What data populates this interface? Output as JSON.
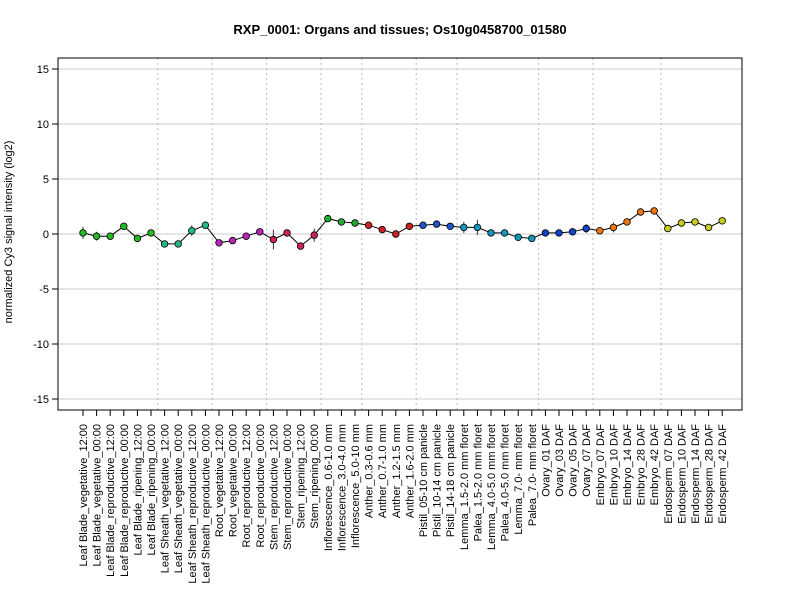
{
  "chart_data": {
    "type": "line",
    "title": "RXP_0001: Organs and tissues; Os10g0458700_01580",
    "xlabel": "",
    "ylabel": "normalized Cy3 signal intensity (log2)",
    "ylim": [
      -16,
      16
    ],
    "yticks": [
      -15,
      -10,
      -5,
      0,
      5,
      10,
      15
    ],
    "grid": true,
    "legend": "none",
    "categories": [
      "Leaf Blade_vegetative_12:00",
      "Leaf Blade_vegetative_00:00",
      "Leaf Blade_reproductive_12:00",
      "Leaf Blade_reproductive_00:00",
      "Leaf Blade_ripening_12:00",
      "Leaf Blade_ripening_00:00",
      "Leaf Sheath_vegetative_12:00",
      "Leaf Sheath_vegetative_00:00",
      "Leaf Sheath_reproductive_12:00",
      "Leaf Sheath_reproductive_00:00",
      "Root_vegetative_12:00",
      "Root_vegetative_00:00",
      "Root_reproductive_12:00",
      "Root_reproductive_00:00",
      "Stem_reproductive_12:00",
      "Stem_reproductive_00:00",
      "Stem_ripening_12:00",
      "Stem_ripening_00:00",
      "Inflorescence_0.6-1.0 mm",
      "Inflorescence_3.0-4.0 mm",
      "Inflorescence_5.0-10 mm",
      "Anther_0.3-0.6 mm",
      "Anther_0.7-1.0 mm",
      "Anther_1.2-1.5 mm",
      "Anther_1.6-2.0 mm",
      "Pistil_05-10 cm panicle",
      "Pistil_10-14 cm panicle",
      "Pistil_14-18 cm panicle",
      "Lemma_1.5-2.0 mm floret",
      "Palea_1.5-2.0 mm floret",
      "Lemma_4.0-5.0 mm floret",
      "Palea_4.0-5.0 mm floret",
      "Lemma_7.0- mm floret",
      "Palea_7.0- mm floret",
      "Ovary_01 DAF",
      "Ovary_03 DAF",
      "Ovary_05 DAF",
      "Ovary_07 DAF",
      "Embryo_07 DAF",
      "Embryo_10 DAF",
      "Embryo_14 DAF",
      "Embryo_28 DAF",
      "Embryo_42 DAF",
      "Endosperm_07 DAF",
      "Endosperm_10 DAF",
      "Endosperm_14 DAF",
      "Endosperm_28 DAF",
      "Endosperm_42 DAF"
    ],
    "values": [
      0.1,
      -0.2,
      -0.2,
      0.7,
      -0.4,
      0.1,
      -0.9,
      -0.9,
      0.3,
      0.8,
      -0.8,
      -0.6,
      -0.2,
      0.2,
      -0.5,
      0.1,
      -1.1,
      -0.1,
      1.4,
      1.1,
      1.0,
      0.8,
      0.4,
      0.0,
      0.7,
      0.8,
      0.9,
      0.7,
      0.6,
      0.6,
      0.1,
      0.1,
      -0.3,
      -0.4,
      0.1,
      0.1,
      0.2,
      0.5,
      0.3,
      0.6,
      1.1,
      2.0,
      2.1,
      0.5,
      1.0,
      1.1,
      0.6,
      1.2
    ],
    "error": [
      0.55,
      0.4,
      0.3,
      0.25,
      0.25,
      0.2,
      0.25,
      0.25,
      0.5,
      0.2,
      0.2,
      0.2,
      0.3,
      0.2,
      0.9,
      0.2,
      0.25,
      0.6,
      0.2,
      0.2,
      0.2,
      0.2,
      0.2,
      0.3,
      0.2,
      0.2,
      0.2,
      0.2,
      0.5,
      0.7,
      0.2,
      0.2,
      0.2,
      0.2,
      0.2,
      0.2,
      0.2,
      0.4,
      0.2,
      0.45,
      0.2,
      0.2,
      0.2,
      0.2,
      0.2,
      0.3,
      0.2,
      0.2
    ],
    "point_colors": [
      "#22bb22",
      "#22bb22",
      "#22bb22",
      "#22bb22",
      "#22bb22",
      "#22bb22",
      "#22bb88",
      "#22bb88",
      "#22bb88",
      "#22bb88",
      "#bb22bb",
      "#bb22bb",
      "#bb22bb",
      "#bb22bb",
      "#cc2255",
      "#cc2255",
      "#cc2255",
      "#cc2255",
      "#22aa33",
      "#22aa33",
      "#22aa33",
      "#cc2222",
      "#cc2222",
      "#cc2222",
      "#cc2222",
      "#2255cc",
      "#2255cc",
      "#2255cc",
      "#1199bb",
      "#1199bb",
      "#1199bb",
      "#1199bb",
      "#1199bb",
      "#1199bb",
      "#1144cc",
      "#1144cc",
      "#1144cc",
      "#1144cc",
      "#ee7711",
      "#ee7711",
      "#ee7711",
      "#ee7711",
      "#ee7711",
      "#cccc22",
      "#cccc22",
      "#cccc22",
      "#cccc22",
      "#cccc22"
    ],
    "group_separators_after": [
      5,
      9,
      13,
      17,
      20,
      24,
      27,
      33,
      37,
      42
    ],
    "line_color": "#000000",
    "grid_color": "#cccccc"
  }
}
